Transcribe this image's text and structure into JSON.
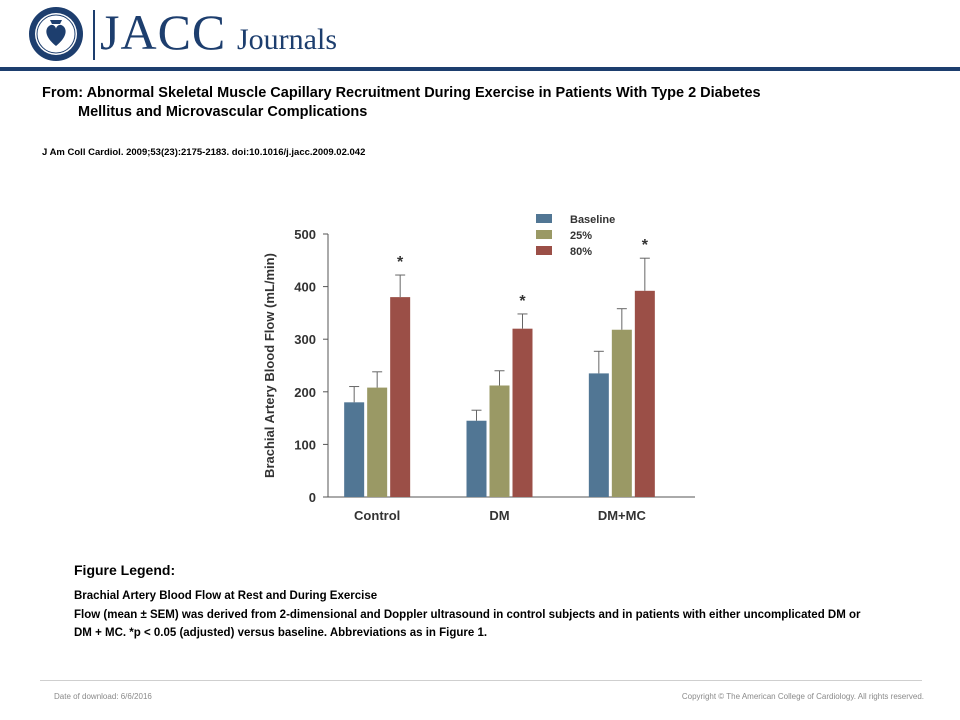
{
  "header": {
    "logo_text": "JACC",
    "logo_subtext": "Journals",
    "seal_text": "AMERICAN COLLEGE OF CARDIOLOGY",
    "brand_color": "#1d3e6e"
  },
  "figure": {
    "title_line1": "From: Abnormal Skeletal Muscle Capillary Recruitment During Exercise in Patients With Type 2 Diabetes",
    "title_line2": "Mellitus and Microvascular Complications",
    "citation": "J Am Coll Cardiol. 2009;53(23):2175-2183. doi:10.1016/j.jacc.2009.02.042"
  },
  "chart_data": {
    "type": "bar",
    "categories": [
      "Control",
      "DM",
      "DM+MC"
    ],
    "series": [
      {
        "name": "Baseline",
        "color": "#517694",
        "values": [
          180,
          145,
          235
        ],
        "errors": [
          30,
          20,
          42
        ]
      },
      {
        "name": "25%",
        "color": "#9a9965",
        "values": [
          208,
          212,
          318
        ],
        "errors": [
          30,
          28,
          40
        ]
      },
      {
        "name": "80%",
        "color": "#9b4f47",
        "values": [
          380,
          320,
          392
        ],
        "errors": [
          42,
          28,
          62
        ]
      }
    ],
    "significance": [
      [
        false,
        false,
        true
      ],
      [
        false,
        false,
        true
      ],
      [
        false,
        false,
        true
      ]
    ],
    "significance_marker": "*",
    "ylabel": "Brachial Artery Blood Flow (mL/min)",
    "xlabel": "",
    "ylim": [
      0,
      500
    ],
    "yticks": [
      0,
      100,
      200,
      300,
      400,
      500
    ],
    "legend_position": "top-right",
    "grid": false
  },
  "legend_section": {
    "heading": "Figure Legend:",
    "subtitle": "Brachial Artery Blood Flow at Rest and During Exercise",
    "text": "Flow (mean ± SEM) was derived from 2-dimensional and Doppler ultrasound in control subjects and in patients with either uncomplicated DM or DM + MC. *p < 0.05 (adjusted) versus baseline. Abbreviations as in Figure 1."
  },
  "footer": {
    "date": "Date of download: 6/6/2016",
    "copyright": "Copyright © The American College of Cardiology. All rights reserved."
  }
}
